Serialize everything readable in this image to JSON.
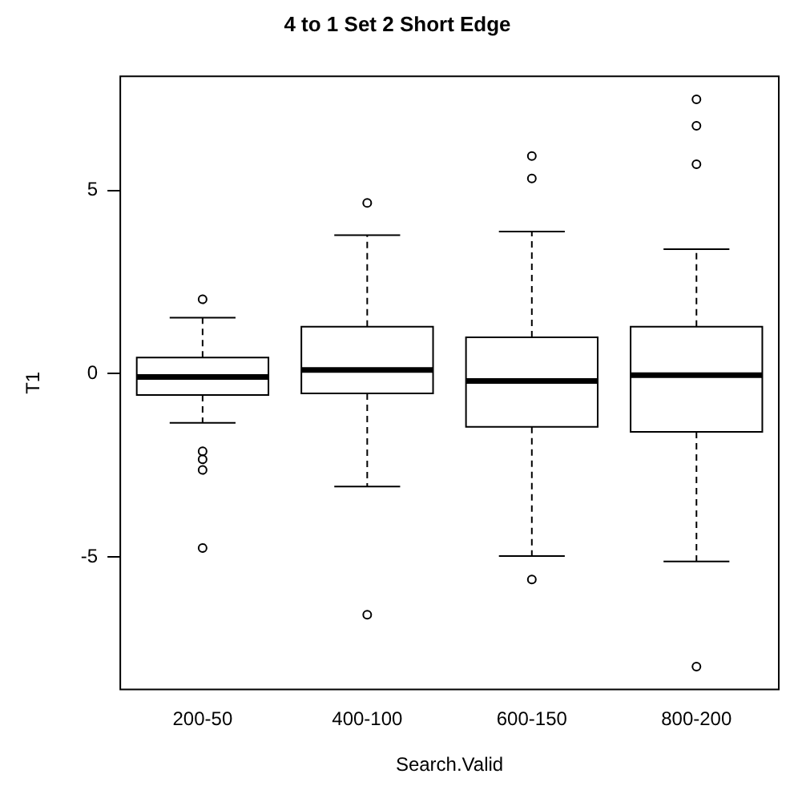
{
  "chart_data": {
    "type": "box",
    "title": "4 to 1 Set 2 Short Edge",
    "xlabel": "Search.Valid",
    "ylabel": "T1",
    "categories": [
      "200-50",
      "400-100",
      "600-150",
      "800-200"
    ],
    "boxes": [
      {
        "low": -1.34,
        "q1": -0.58,
        "median": -0.09,
        "q3": 0.44,
        "high": 1.53,
        "outliers": [
          2.03,
          -2.12,
          -2.34,
          -2.63,
          -4.76
        ]
      },
      {
        "low": -3.08,
        "q1": -0.54,
        "median": 0.1,
        "q3": 1.28,
        "high": 3.78,
        "outliers": [
          4.66,
          -6.58
        ]
      },
      {
        "low": -4.98,
        "q1": -1.45,
        "median": -0.2,
        "q3": 0.99,
        "high": 3.88,
        "outliers": [
          5.94,
          5.33,
          -5.62
        ]
      },
      {
        "low": -5.13,
        "q1": -1.59,
        "median": -0.04,
        "q3": 1.28,
        "high": 3.4,
        "outliers": [
          7.49,
          6.77,
          5.72,
          -8.0
        ]
      }
    ],
    "color": "#000000",
    "ylim": [
      -8.62,
      8.12
    ],
    "yticks": [
      -5,
      0,
      5
    ],
    "grid": false,
    "legend": false
  }
}
